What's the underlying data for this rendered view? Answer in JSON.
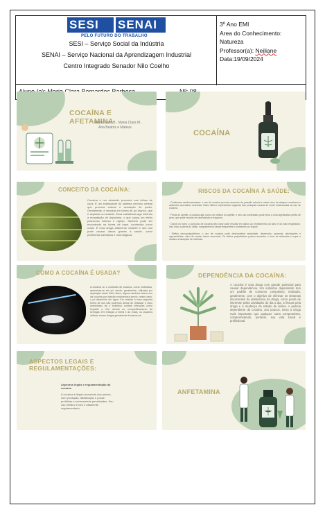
{
  "header": {
    "logo_sesi": "SESI",
    "logo_senai": "SENAI",
    "logo_tagline": "PELO FUTURO DO TRABALHO",
    "institution_line1": "SESI – Serviço Social da Indústria",
    "institution_line2": "SENAI – Serviço Nacional da Aprendizagem Industrial",
    "institution_line3": "Centro Integrado Senador Nilo Coelho",
    "grade": "3º Ano EMI",
    "area_label": "Area do Conhecimento:",
    "area_value": "Natureza",
    "professor_label": "Professor(a):",
    "professor_name": "Neiliane",
    "date": "Data:19/09/2024"
  },
  "student": {
    "label": "Aluno (a): Maria Clara Bernardes Barbosa",
    "number": "Nº: 08"
  },
  "slides": {
    "s1": {
      "title": "COCAÍNA E AFETAMINA",
      "authors_line1": "Maria Clara B , Maria Clara M ,",
      "authors_line2": "Ana Beatriz e Mateus"
    },
    "s2": {
      "title": "COCAÍNA"
    },
    "s3": {
      "title": "CONCEITO DA COCAÍNA:",
      "text": "Cocaína é um alcaloide presente nas folhas de coca. É um estimulante do sistema nervoso central que provoca euforia e sensação de poder. Geralmente, é vendida em forma de pó branco, que é aspirado ou inalado. Essa substância age inibindo a recaptação de dopamina, o que causa um efeito prazeroso intenso e rápido. Também pode ser encontrada na forma de base, conhecida como crack. É uma droga altamente viciante e seu uso pode causar danos graves à saúde, como problemas cardíacos e neurológicos."
    },
    "s4": {
      "title": "RISCOS DA COCAÍNA À SAÚDE:",
      "text1": "· Problemas cardiovasculares: o uso de cocaína provoca aumento da pressão arterial e maior risco de ataques cardíacos e acidentes vasculares cerebrais. Estes últimos representam algumas das principais causas de morte relacionadas ao uso de cocaína.",
      "text2": "· Perda de apetite: a cocaína age como um inibidor do apetite, e seu uso continuado pode levar a uma significativa perda de peso, que pode resultar em desnutrição e fraqueza.",
      "text3": "· Danos no nariz: o consumo de cocaína pelo nariz pode resultar em danos ao revestimento do nariz e do trato respiratório. Isso inclui a perda do olfato, sangramentos nasais frequentes e problemas ao engolir.",
      "text4": "· Efeitos neuropsiquiátricos: o uso de cocaína pode desencadear ansiedade, depressão, paranoia, alucinações e agressividade, além de causar danos neuronais. Os efeitos psiquiátricos podem aumentar o risco de acidentes e expor o usuário a situações de violência."
    },
    "s5": {
      "title": "COMO A COCAÍNA É USADA?",
      "text": "A cocaína ou o cloridrato de cocaína, como moléculas, apresenta-se em pó, sendo, geralmente, utilizada por aspiração nasal. Além disso, alguns usuários fazem uso da cocaína por injeção endovenosa sendo, nesse caso, o pó dissolvido em água. Em relação à essa segunda forma de uso não podemos deixar de destacar o risco aumentado de o indivíduo contrair infecções como hepatite e HIV, devido ao compartilhamento de seringas. Em relação à merla e ao crack, os usuários utilizam essas drogas geralmente fumando-as."
    },
    "s6": {
      "title": "DEPENDÊNCIA DA COCAÍNA:",
      "text": "A cocaína é uma droga com grande potencial para causar dependência. Um indivíduo dependente tem um padrão de consumo compulsivo, realizado, geralmente, com o objetivo de eliminar os sintomas decorrentes da abstinência da droga, como perda de interesse pelas atividades do dia a dia, a fissura pela droga e a mudança do estado de ânimo. A pessoa dependente da cocaína, aos poucos, torna a droga mais importante que qualquer outro compromisso, comprometendo, portanto, sua vida social e profissional."
    },
    "s7": {
      "title": "ASPECTOS LEGAIS E REGULAMENTAÇÕES:",
      "subtitle": "Aspectos legais e regulamentação da cocaína",
      "text": "A cocaína é ilegal na maioria dos países, com produção, distribuição e posse proibidas e severamente penalizadas. Seu uso médico é raro e altamente regulamentado."
    },
    "s8": {
      "title": "ANFETAMINA"
    }
  },
  "colors": {
    "slide_bg": "#f4f2e4",
    "blob": "#b9cfb3",
    "title_gold": "#b6a86a",
    "logo_blue": "#1f4fa1"
  }
}
